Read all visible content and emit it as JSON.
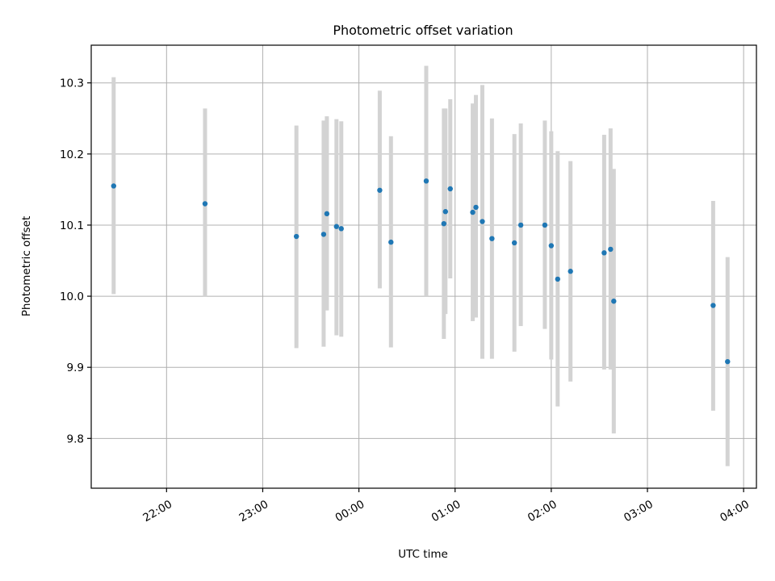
{
  "chart_data": {
    "type": "scatter",
    "title": "Photometric offset variation",
    "xlabel": "UTC time",
    "ylabel": "Photometric offset",
    "grid": true,
    "x_tick_labels": [
      "22:00",
      "23:00",
      "00:00",
      "01:00",
      "02:00",
      "03:00",
      "04:00"
    ],
    "y_ticks": [
      9.8,
      9.9,
      10.0,
      10.1,
      10.2,
      10.3
    ],
    "y_tick_labels": [
      "9.8",
      "9.9",
      "10.0",
      "10.1",
      "10.2",
      "10.3"
    ],
    "xlim": [
      "21:13",
      "04:08"
    ],
    "ylim": [
      9.73,
      10.353
    ],
    "colors": {
      "points": "#1f77b4",
      "errorbars": "#d3d3d3"
    },
    "points": [
      {
        "x": "21:27",
        "y": 10.155,
        "ylow": 10.003,
        "yhigh": 10.308
      },
      {
        "x": "22:24",
        "y": 10.13,
        "ylow": 9.999,
        "yhigh": 10.264
      },
      {
        "x": "23:21",
        "y": 10.084,
        "ylow": 9.927,
        "yhigh": 10.24
      },
      {
        "x": "23:38",
        "y": 10.087,
        "ylow": 9.929,
        "yhigh": 10.247
      },
      {
        "x": "23:40",
        "y": 10.116,
        "ylow": 9.98,
        "yhigh": 10.253
      },
      {
        "x": "23:46",
        "y": 10.098,
        "ylow": 9.945,
        "yhigh": 10.249
      },
      {
        "x": "23:49",
        "y": 10.095,
        "ylow": 9.943,
        "yhigh": 10.246
      },
      {
        "x": "00:13",
        "y": 10.149,
        "ylow": 10.011,
        "yhigh": 10.289
      },
      {
        "x": "00:20",
        "y": 10.076,
        "ylow": 9.928,
        "yhigh": 10.225
      },
      {
        "x": "00:42",
        "y": 10.162,
        "ylow": 10.0,
        "yhigh": 10.324
      },
      {
        "x": "00:53",
        "y": 10.102,
        "ylow": 9.94,
        "yhigh": 10.264
      },
      {
        "x": "00:54",
        "y": 10.119,
        "ylow": 9.975,
        "yhigh": 10.264
      },
      {
        "x": "00:57",
        "y": 10.151,
        "ylow": 10.025,
        "yhigh": 10.277
      },
      {
        "x": "01:11",
        "y": 10.118,
        "ylow": 9.965,
        "yhigh": 10.271
      },
      {
        "x": "01:13",
        "y": 10.125,
        "ylow": 9.97,
        "yhigh": 10.283
      },
      {
        "x": "01:17",
        "y": 10.105,
        "ylow": 9.912,
        "yhigh": 10.297
      },
      {
        "x": "01:23",
        "y": 10.081,
        "ylow": 9.912,
        "yhigh": 10.25
      },
      {
        "x": "01:37",
        "y": 10.075,
        "ylow": 9.922,
        "yhigh": 10.228
      },
      {
        "x": "01:41",
        "y": 10.1,
        "ylow": 9.958,
        "yhigh": 10.243
      },
      {
        "x": "01:56",
        "y": 10.1,
        "ylow": 9.954,
        "yhigh": 10.247
      },
      {
        "x": "02:00",
        "y": 10.071,
        "ylow": 9.911,
        "yhigh": 10.232
      },
      {
        "x": "02:04",
        "y": 10.024,
        "ylow": 9.845,
        "yhigh": 10.204
      },
      {
        "x": "02:12",
        "y": 10.035,
        "ylow": 9.88,
        "yhigh": 10.19
      },
      {
        "x": "02:33",
        "y": 10.061,
        "ylow": 9.897,
        "yhigh": 10.227
      },
      {
        "x": "02:37",
        "y": 10.066,
        "ylow": 9.897,
        "yhigh": 10.236
      },
      {
        "x": "02:39",
        "y": 9.993,
        "ylow": 9.807,
        "yhigh": 10.179
      },
      {
        "x": "03:41",
        "y": 9.987,
        "ylow": 9.839,
        "yhigh": 10.134
      },
      {
        "x": "03:50",
        "y": 9.908,
        "ylow": 9.761,
        "yhigh": 10.055
      }
    ]
  }
}
